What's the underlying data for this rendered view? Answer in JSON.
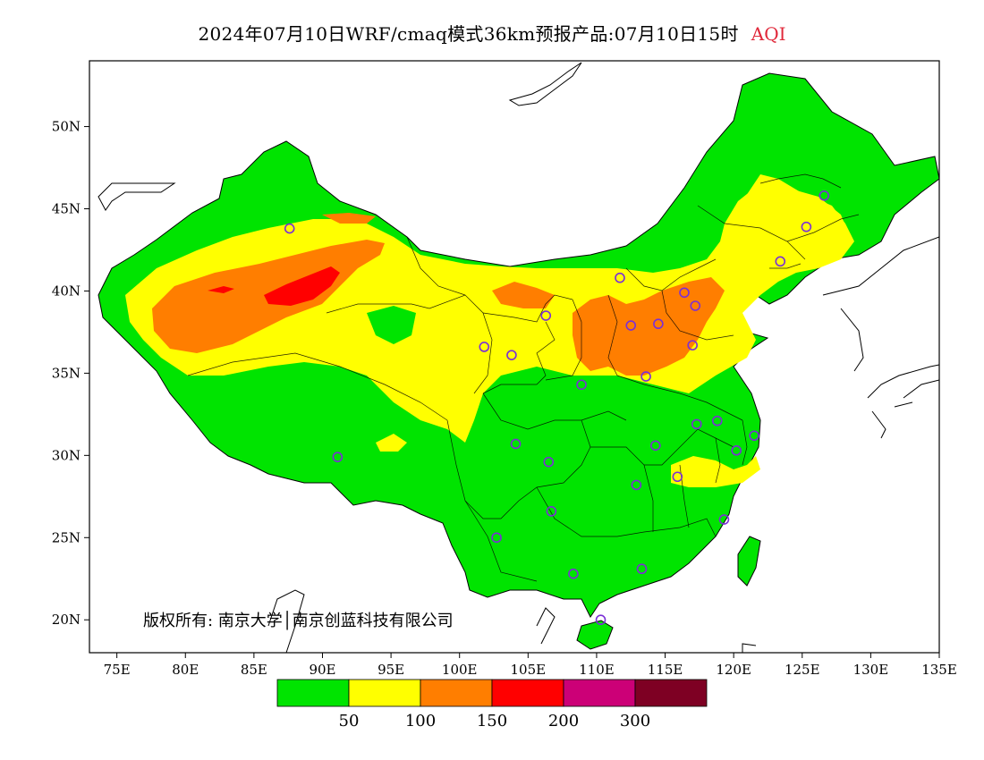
{
  "title": {
    "main": "2024年07月10日WRF/cmaq模式36km预报产品:07月10日15时",
    "variable": "AQI"
  },
  "copyright": "版权所有: 南京大学│南京创蓝科技有限公司",
  "axes": {
    "x_ticks": [
      "75E",
      "80E",
      "85E",
      "90E",
      "95E",
      "100E",
      "105E",
      "110E",
      "115E",
      "120E",
      "125E",
      "130E",
      "135E"
    ],
    "y_ticks": [
      "50N",
      "45N",
      "40N",
      "35N",
      "30N",
      "25N",
      "20N"
    ],
    "lon_range": [
      73,
      135
    ],
    "lat_range": [
      18,
      54
    ]
  },
  "legend": {
    "colors": [
      "#00e400",
      "#ffff00",
      "#ff7e00",
      "#ff0000",
      "#cc0077",
      "#7e0023"
    ],
    "labels": [
      "50",
      "100",
      "150",
      "200",
      "300"
    ]
  },
  "stations": [
    {
      "lon": 87.6,
      "lat": 43.8
    },
    {
      "lon": 91.1,
      "lat": 29.9
    },
    {
      "lon": 101.8,
      "lat": 36.6
    },
    {
      "lon": 103.8,
      "lat": 36.1
    },
    {
      "lon": 106.3,
      "lat": 38.5
    },
    {
      "lon": 111.7,
      "lat": 40.8
    },
    {
      "lon": 112.5,
      "lat": 37.9
    },
    {
      "lon": 114.5,
      "lat": 38.0
    },
    {
      "lon": 116.4,
      "lat": 39.9
    },
    {
      "lon": 117.2,
      "lat": 39.1
    },
    {
      "lon": 117.0,
      "lat": 36.7
    },
    {
      "lon": 113.6,
      "lat": 34.8
    },
    {
      "lon": 108.9,
      "lat": 34.3
    },
    {
      "lon": 104.1,
      "lat": 30.7
    },
    {
      "lon": 106.5,
      "lat": 29.6
    },
    {
      "lon": 106.7,
      "lat": 26.6
    },
    {
      "lon": 102.7,
      "lat": 25.0
    },
    {
      "lon": 108.3,
      "lat": 22.8
    },
    {
      "lon": 113.3,
      "lat": 23.1
    },
    {
      "lon": 110.3,
      "lat": 20.0
    },
    {
      "lon": 112.9,
      "lat": 28.2
    },
    {
      "lon": 114.3,
      "lat": 30.6
    },
    {
      "lon": 115.9,
      "lat": 28.7
    },
    {
      "lon": 117.3,
      "lat": 31.9
    },
    {
      "lon": 118.8,
      "lat": 32.1
    },
    {
      "lon": 120.2,
      "lat": 30.3
    },
    {
      "lon": 121.5,
      "lat": 31.2
    },
    {
      "lon": 119.3,
      "lat": 26.1
    },
    {
      "lon": 123.4,
      "lat": 41.8
    },
    {
      "lon": 125.3,
      "lat": 43.9
    },
    {
      "lon": 126.6,
      "lat": 45.8
    }
  ]
}
